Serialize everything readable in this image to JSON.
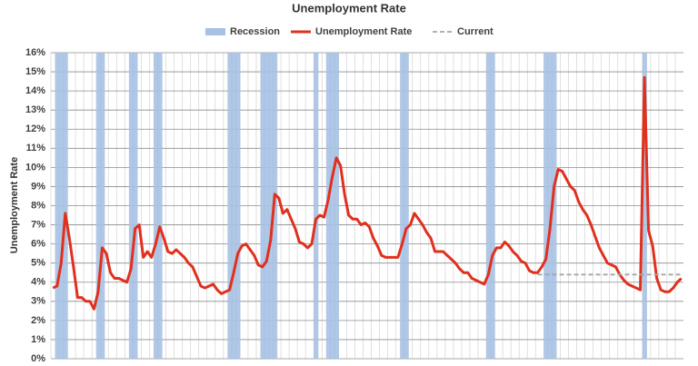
{
  "chart_data": {
    "type": "combo",
    "title": "Unemployment Rate",
    "y_label": "Unemployment Rate",
    "categories": [
      null,
      null,
      null,
      null,
      null,
      null,
      null,
      null,
      null,
      null,
      null,
      null,
      null,
      null,
      null,
      null,
      null,
      null,
      null,
      null,
      null,
      null,
      null,
      null,
      null,
      null,
      null,
      null,
      null,
      null,
      null,
      null,
      null,
      null,
      null,
      null,
      null,
      null,
      null,
      null,
      null,
      null,
      null,
      null,
      null,
      null,
      null,
      null,
      null,
      null,
      null,
      null,
      null,
      null,
      null,
      null,
      null,
      null,
      null,
      null,
      null,
      null,
      null,
      null,
      null,
      null,
      null,
      null,
      null,
      null,
      null,
      null,
      null,
      null,
      null,
      null,
      null,
      null,
      null,
      null,
      null,
      null,
      null,
      null,
      null,
      null,
      null,
      null,
      null,
      null,
      null,
      null,
      null,
      null,
      null,
      null,
      null,
      null,
      null,
      null,
      null,
      null,
      null,
      null,
      null,
      null,
      null,
      null,
      null,
      null,
      null,
      null,
      null,
      null,
      null,
      null,
      null,
      null,
      null,
      null,
      null,
      null,
      null,
      null,
      null,
      null,
      null,
      null,
      null,
      null,
      null,
      null,
      null,
      null,
      null,
      null,
      null,
      null,
      null,
      null,
      null,
      null,
      null,
      null,
      null,
      null,
      null,
      null,
      null,
      null,
      null,
      null,
      null,
      null
    ],
    "series": [
      {
        "name": "Recession",
        "kind": "bar",
        "color": "#a7c1e3",
        "values": [
          null,
          16,
          16,
          16,
          null,
          null,
          null,
          null,
          null,
          null,
          null,
          16,
          16,
          null,
          null,
          null,
          null,
          null,
          null,
          16,
          16,
          null,
          null,
          null,
          null,
          16,
          16,
          null,
          null,
          null,
          null,
          null,
          null,
          null,
          null,
          null,
          null,
          null,
          null,
          null,
          null,
          null,
          null,
          16,
          16,
          16,
          null,
          null,
          null,
          null,
          null,
          16,
          16,
          16,
          16,
          null,
          null,
          null,
          null,
          null,
          null,
          null,
          null,
          null,
          16,
          null,
          null,
          16,
          16,
          16,
          null,
          null,
          null,
          null,
          null,
          null,
          null,
          null,
          null,
          null,
          null,
          null,
          null,
          null,
          null,
          16,
          16,
          null,
          null,
          null,
          null,
          null,
          null,
          null,
          null,
          null,
          null,
          null,
          null,
          null,
          null,
          null,
          null,
          null,
          null,
          null,
          16,
          16,
          null,
          null,
          null,
          null,
          null,
          null,
          null,
          null,
          null,
          null,
          null,
          null,
          16,
          16,
          16,
          null,
          null,
          null,
          null,
          null,
          null,
          null,
          null,
          null,
          null,
          null,
          null,
          null,
          null,
          null,
          null,
          null,
          null,
          null,
          null,
          null,
          16,
          null,
          null,
          null,
          null,
          null,
          null,
          null,
          null,
          null
        ]
      },
      {
        "name": "Unemployment Rate",
        "kind": "line",
        "color": "#e0301e",
        "values": [
          3.7,
          3.8,
          5.0,
          7.6,
          6.3,
          4.8,
          3.2,
          3.2,
          3.0,
          3.0,
          2.6,
          3.5,
          5.8,
          5.5,
          4.5,
          4.2,
          4.2,
          4.1,
          4.0,
          4.7,
          6.8,
          7.0,
          5.3,
          5.6,
          5.3,
          6.0,
          6.9,
          6.3,
          5.6,
          5.5,
          5.7,
          5.5,
          5.3,
          5.0,
          4.8,
          4.3,
          3.8,
          3.7,
          3.8,
          3.9,
          3.6,
          3.4,
          3.5,
          3.6,
          4.5,
          5.5,
          5.9,
          6.0,
          5.7,
          5.4,
          4.9,
          4.8,
          5.1,
          6.2,
          8.6,
          8.4,
          7.6,
          7.8,
          7.3,
          6.8,
          6.1,
          6.0,
          5.8,
          6.0,
          7.3,
          7.5,
          7.4,
          8.3,
          9.5,
          10.5,
          10.1,
          8.6,
          7.5,
          7.3,
          7.3,
          7.0,
          7.1,
          6.9,
          6.3,
          5.9,
          5.4,
          5.3,
          5.3,
          5.3,
          5.3,
          6.0,
          6.8,
          7.0,
          7.6,
          7.3,
          7.0,
          6.6,
          6.3,
          5.6,
          5.6,
          5.6,
          5.4,
          5.2,
          5.0,
          4.7,
          4.5,
          4.5,
          4.2,
          4.1,
          4.0,
          3.9,
          4.4,
          5.4,
          5.8,
          5.8,
          6.1,
          5.9,
          5.6,
          5.4,
          5.1,
          5.0,
          4.6,
          4.5,
          4.5,
          4.8,
          5.2,
          6.8,
          9.0,
          9.9,
          9.8,
          9.4,
          9.0,
          8.8,
          8.2,
          7.8,
          7.5,
          7.0,
          6.4,
          5.8,
          5.4,
          5.0,
          4.9,
          4.8,
          4.4,
          4.1,
          3.9,
          3.8,
          3.7,
          3.6,
          14.7,
          6.7,
          5.9,
          4.2,
          3.6,
          3.5,
          3.5,
          3.7,
          4.0,
          4.2
        ]
      },
      {
        "name": "Current",
        "kind": "line",
        "dash": true,
        "color": "#a6a6a6",
        "values": [
          null,
          null,
          null,
          null,
          null,
          null,
          null,
          null,
          null,
          null,
          null,
          null,
          null,
          null,
          null,
          null,
          null,
          null,
          null,
          null,
          null,
          null,
          null,
          null,
          null,
          null,
          null,
          null,
          null,
          null,
          null,
          null,
          null,
          null,
          null,
          null,
          null,
          null,
          null,
          null,
          null,
          null,
          null,
          null,
          null,
          null,
          null,
          null,
          null,
          null,
          null,
          null,
          null,
          null,
          null,
          null,
          null,
          null,
          null,
          null,
          null,
          null,
          null,
          null,
          null,
          null,
          null,
          null,
          null,
          null,
          null,
          null,
          null,
          null,
          null,
          null,
          null,
          null,
          null,
          null,
          null,
          null,
          null,
          null,
          null,
          null,
          null,
          null,
          null,
          null,
          null,
          null,
          null,
          null,
          null,
          null,
          null,
          null,
          null,
          null,
          null,
          null,
          null,
          null,
          null,
          null,
          null,
          null,
          null,
          null,
          null,
          null,
          null,
          null,
          null,
          null,
          null,
          null,
          4.4,
          4.4,
          4.4,
          4.4,
          4.4,
          4.4,
          4.4,
          4.4,
          4.4,
          4.4,
          4.4,
          4.4,
          4.4,
          4.4,
          4.4,
          4.4,
          4.4,
          4.4,
          4.4,
          4.4,
          4.4,
          4.4,
          4.4,
          4.4,
          4.4,
          4.4,
          4.4,
          4.4,
          4.4,
          4.4,
          4.4,
          4.4,
          4.4,
          4.4,
          4.4,
          4.4
        ]
      }
    ],
    "ylim": [
      0,
      16
    ],
    "yticks": [
      {
        "value": 0,
        "label": "0%"
      },
      {
        "value": 1,
        "label": "1%"
      },
      {
        "value": 2,
        "label": "2%"
      },
      {
        "value": 3,
        "label": "3%"
      },
      {
        "value": 4,
        "label": "4%"
      },
      {
        "value": 5,
        "label": "5%"
      },
      {
        "value": 6,
        "label": "6%"
      },
      {
        "value": 7,
        "label": "7%"
      },
      {
        "value": 8,
        "label": "8%"
      },
      {
        "value": 9,
        "label": "9%"
      },
      {
        "value": 10,
        "label": "10%"
      },
      {
        "value": 11,
        "label": "11%"
      },
      {
        "value": 12,
        "label": "12%"
      },
      {
        "value": 13,
        "label": "13%"
      },
      {
        "value": 14,
        "label": "14%"
      },
      {
        "value": 15,
        "label": "15%"
      },
      {
        "value": 16,
        "label": "16%"
      }
    ],
    "grid": true,
    "legend": "top"
  }
}
